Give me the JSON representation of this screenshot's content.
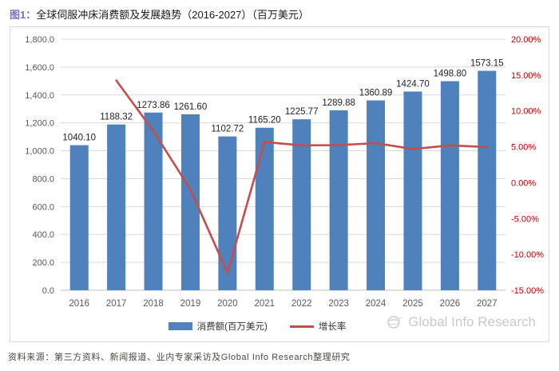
{
  "page": {
    "title_prefix": "图1：",
    "title_text": "全球伺服冲床消费额及发展趋势（2016-2027）（百万美元）",
    "watermark": "Global Info Research",
    "source_note": "资料来源：第三方资料、新闻报道、业内专家采访及Global Info Research整理研究"
  },
  "colors": {
    "bar": "#4F81BD",
    "line": "#C0504D",
    "right_axis_text": "#C00000",
    "axis_text": "#595959",
    "value_label_text": "#1f1f1f",
    "grid": "#D9D9D9",
    "baseline": "#BFBFBF",
    "title_prefix_color": "#7E6FBB",
    "watermark_text": "#C9C9C9"
  },
  "chart_data": {
    "type": "bar",
    "subtype": "combo-bar-line",
    "title": "全球伺服冲床消费额及发展趋势（2016-2027）（百万美元）",
    "categories": [
      2016,
      2017,
      2018,
      2019,
      2020,
      2021,
      2022,
      2023,
      2024,
      2025,
      2026,
      2027
    ],
    "series": [
      {
        "name": "消费额(百万美元)",
        "type": "bar",
        "axis": "left",
        "values": [
          1040.1,
          1188.32,
          1273.86,
          1261.6,
          1102.72,
          1165.2,
          1225.77,
          1289.88,
          1360.89,
          1424.7,
          1498.8,
          1573.15
        ]
      },
      {
        "name": "增长率",
        "type": "line",
        "axis": "right",
        "values": [
          null,
          14.25,
          7.2,
          -0.96,
          -12.59,
          5.67,
          5.2,
          5.23,
          5.51,
          4.69,
          5.2,
          4.96
        ]
      }
    ],
    "y_left": {
      "min": 0,
      "max": 1800,
      "step": 200,
      "tick_format": "thousands-comma-one-decimal"
    },
    "y_right": {
      "min": -15,
      "max": 20,
      "step": 5,
      "tick_format": "percent-two-decimal"
    },
    "grid": "horizontal",
    "legend_position": "bottom",
    "bar_value_labels": true
  }
}
